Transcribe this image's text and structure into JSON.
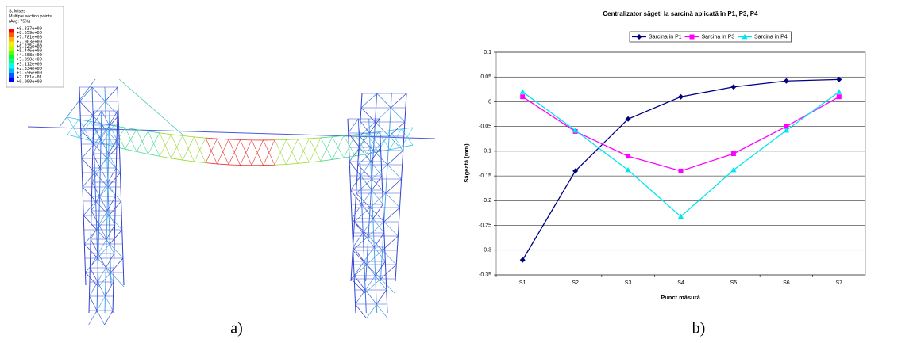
{
  "chart_data": {
    "type": "line",
    "title": "Centralizator săgeti la sarcină aplicată în P1, P3, P4",
    "x_label": "Punct măsură",
    "y_label": "Săgeată (mm)",
    "categories": [
      "S1",
      "S2",
      "S3",
      "S4",
      "S5",
      "S6",
      "S7"
    ],
    "series": [
      {
        "name": "Sarcina in P1",
        "color": "#000080",
        "marker": "diamond",
        "values": [
          -0.32,
          -0.14,
          -0.035,
          0.01,
          0.03,
          0.042,
          0.045
        ]
      },
      {
        "name": "Sarcina in P3",
        "color": "#ff00ff",
        "marker": "square",
        "values": [
          0.01,
          -0.06,
          -0.11,
          -0.14,
          -0.105,
          -0.05,
          0.01
        ]
      },
      {
        "name": "Sarcina in P4",
        "color": "#00e5ee",
        "marker": "triangle",
        "values": [
          0.02,
          -0.058,
          -0.138,
          -0.232,
          -0.138,
          -0.058,
          0.02
        ]
      }
    ],
    "ylim": [
      -0.35,
      0.1
    ],
    "yticks": [
      -0.35,
      -0.3,
      -0.25,
      -0.2,
      -0.15,
      -0.1,
      -0.05,
      0,
      0.05,
      0.1
    ],
    "grid": true,
    "legend": "top"
  },
  "contour_legend": {
    "title": [
      "S, Mises",
      "Multiple section points",
      "(Avg: 75%)"
    ],
    "levels": [
      "+9.337e+00",
      "+8.559e+00",
      "+7.781e+00",
      "+7.003e+00",
      "+6.225e+00",
      "+5.446e+00",
      "+4.668e+00",
      "+3.890e+00",
      "+3.112e+00",
      "+2.334e+00",
      "+1.556e+00",
      "+7.781e-01",
      "+0.000e+00"
    ]
  },
  "captions": [
    "a)",
    "b)"
  ]
}
